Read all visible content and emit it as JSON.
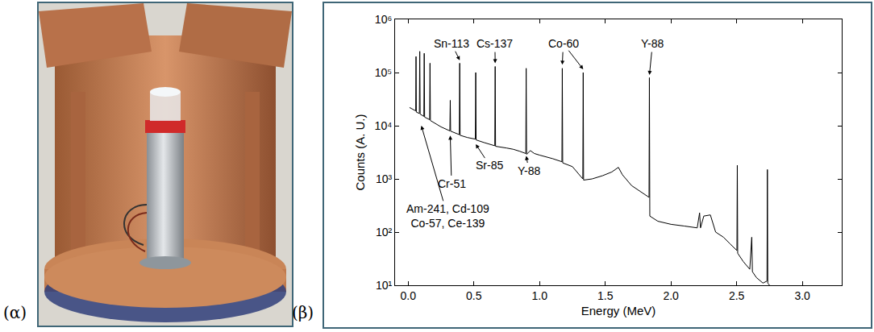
{
  "panel_labels": [
    "(α)",
    "(β)"
  ],
  "chart_data": {
    "type": "line",
    "x_label": "Energy (MeV)",
    "y_label": "Counts (A. U.)",
    "log": "y",
    "grid": false,
    "color": "#000000",
    "xlim": [
      -0.1,
      3.3
    ],
    "xticks": [
      {
        "value": 0,
        "label": "0.0"
      },
      {
        "value": 0.5,
        "label": "0.5"
      },
      {
        "value": 1,
        "label": "1.0"
      },
      {
        "value": 1.5,
        "label": "1.5"
      },
      {
        "value": 2,
        "label": "2.0"
      },
      {
        "value": 2.5,
        "label": "2.5"
      },
      {
        "value": 3,
        "label": "3.0"
      }
    ],
    "ylim": [
      10,
      1000000
    ],
    "yticks": [
      {
        "value": 10,
        "label": "10¹"
      },
      {
        "value": 100,
        "label": "10²"
      },
      {
        "value": 1000,
        "label": "10³"
      },
      {
        "value": 10000,
        "label": "10⁴"
      },
      {
        "value": 100000,
        "label": "10⁵"
      },
      {
        "value": 1000000,
        "label": "10⁶"
      }
    ],
    "x": [
      0.01,
      0.05,
      0.057,
      0.0595,
      0.062,
      0.085,
      0.088,
      0.091,
      0.119,
      0.122,
      0.125,
      0.163,
      0.166,
      0.169,
      0.25,
      0.317,
      0.32,
      0.323,
      0.389,
      0.392,
      0.395,
      0.45,
      0.511,
      0.514,
      0.517,
      0.58,
      0.659,
      0.662,
      0.665,
      0.75,
      0.8,
      0.85,
      0.895,
      0.898,
      0.901,
      0.93,
      0.96,
      1.0,
      1.05,
      1.1,
      1.17,
      1.173,
      1.176,
      1.25,
      1.329,
      1.332,
      1.335,
      1.4,
      1.48,
      1.55,
      1.6,
      1.63,
      1.7,
      1.78,
      1.833,
      1.836,
      1.839,
      1.9,
      2.0,
      2.1,
      2.2,
      2.218,
      2.225,
      2.25,
      2.3,
      2.34,
      2.4,
      2.45,
      2.502,
      2.505,
      2.508,
      2.55,
      2.6,
      2.615,
      2.62,
      2.65,
      2.7,
      2.731,
      2.734,
      2.737,
      2.75
    ],
    "values": [
      22000,
      19000,
      19000,
      200000,
      18000,
      17000,
      250000,
      16500,
      15000,
      230000,
      14500,
      13000,
      150000,
      12500,
      9500,
      8000,
      30000,
      7900,
      6800,
      150000,
      6600,
      6000,
      5600,
      100000,
      5400,
      4800,
      4200,
      130000,
      4100,
      3800,
      3600,
      3300,
      3000,
      120000,
      2900,
      3400,
      3000,
      2800,
      2600,
      2400,
      2100,
      120000,
      2000,
      1700,
      1000,
      100000,
      950,
      1000,
      1150,
      1350,
      1650,
      1200,
      750,
      550,
      450,
      80000,
      200,
      160,
      140,
      130,
      120,
      230,
      120,
      200,
      210,
      100,
      80,
      60,
      45,
      1800,
      40,
      28,
      20,
      80,
      18,
      14,
      11,
      12,
      1500,
      11,
      10
    ],
    "annotations": [
      {
        "text": "Sn-113",
        "x": 0.33,
        "y": 350000,
        "points": [
          [
            0.392,
            170000
          ]
        ]
      },
      {
        "text": "Cs-137",
        "x": 0.66,
        "y": 350000,
        "points": [
          [
            0.662,
            150000
          ]
        ]
      },
      {
        "text": "Co-60",
        "x": 1.18,
        "y": 350000,
        "points": [
          [
            1.173,
            140000
          ],
          [
            1.332,
            115000
          ]
        ]
      },
      {
        "text": "Y-88",
        "x": 1.86,
        "y": 350000,
        "points": [
          [
            1.836,
            90000
          ]
        ]
      },
      {
        "text": "Sr-85",
        "x": 0.62,
        "y": 1800,
        "points": [
          [
            0.514,
            4500
          ]
        ]
      },
      {
        "text": "Cr-51",
        "x": 0.33,
        "y": 800,
        "points": [
          [
            0.32,
            6500
          ]
        ]
      },
      {
        "text": "Y-88",
        "x": 0.92,
        "y": 1400,
        "points": [
          [
            0.898,
            2700
          ]
        ]
      },
      {
        "text": "Am-241, Cd-109\nCo-57, Ce-139",
        "x": 0.3,
        "y": 200,
        "points": [
          [
            0.1,
            10000
          ]
        ]
      }
    ]
  }
}
